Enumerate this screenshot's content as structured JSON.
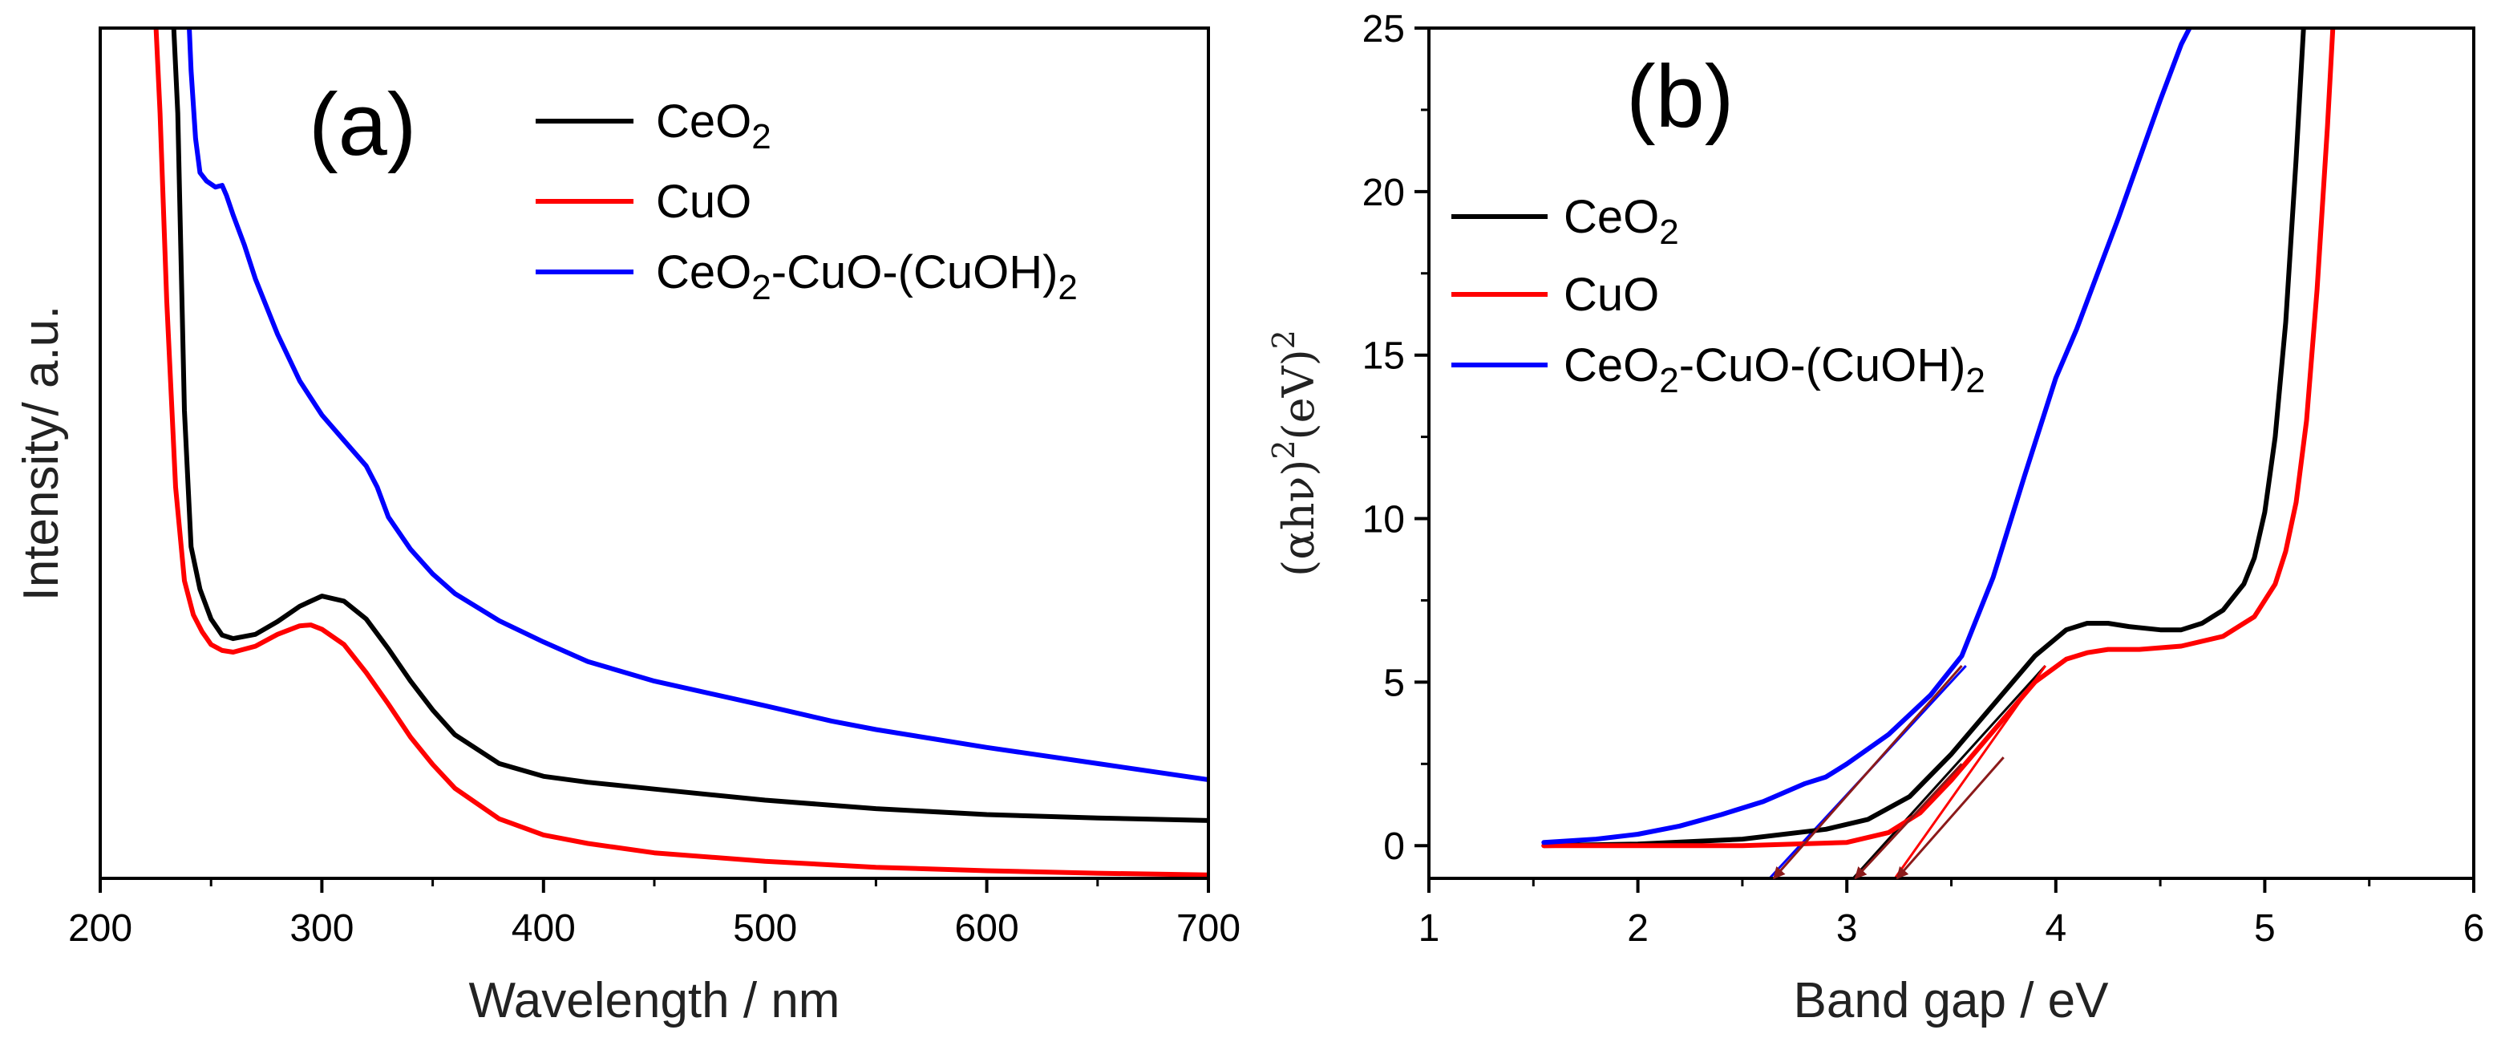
{
  "chart_data": [
    {
      "type": "line",
      "panel_label": "(a)",
      "xlabel": "Wavelength / nm",
      "ylabel": "Intensity/ a.u.",
      "xlim": [
        200,
        700
      ],
      "ylim": [
        0,
        100
      ],
      "xticks": [
        "200",
        "300",
        "400",
        "500",
        "600",
        "700"
      ],
      "legend": "top-right",
      "series": [
        {
          "name": "CeO2",
          "label_main": "CeO",
          "label_sub": "2",
          "label_rest": "",
          "color": "#000000",
          "x": [
            233,
            235,
            238,
            241,
            245,
            250,
            255,
            260,
            270,
            280,
            290,
            300,
            310,
            320,
            330,
            340,
            350,
            360,
            380,
            400,
            420,
            450,
            500,
            550,
            600,
            650,
            700
          ],
          "y": [
            101,
            90,
            55,
            39,
            34,
            30.5,
            28.6,
            28.2,
            28.7,
            30.2,
            32,
            33.2,
            32.6,
            30.5,
            27,
            23.2,
            19.8,
            16.9,
            13.5,
            12,
            11.3,
            10.5,
            9.2,
            8.2,
            7.5,
            7.1,
            6.8
          ]
        },
        {
          "name": "CuO",
          "label_main": "CuO",
          "label_sub": "",
          "label_rest": "",
          "color": "#ff0000",
          "x": [
            225,
            227,
            230,
            234,
            238,
            242,
            246,
            250,
            255,
            260,
            270,
            280,
            290,
            295,
            300,
            310,
            320,
            330,
            340,
            350,
            360,
            380,
            400,
            420,
            450,
            500,
            550,
            600,
            650,
            700
          ],
          "y": [
            101,
            90,
            68,
            46,
            35,
            31,
            29,
            27.5,
            26.8,
            26.6,
            27.3,
            28.7,
            29.7,
            29.8,
            29.3,
            27.5,
            24.2,
            20.5,
            16.6,
            13.4,
            10.6,
            7,
            5.1,
            4.1,
            3,
            2,
            1.3,
            0.9,
            0.6,
            0.4
          ]
        },
        {
          "name": "CeO2-CuO-(CuOH)2",
          "label_main": "CeO",
          "label_sub": "2",
          "label_rest": "-CuO-(CuOH)",
          "label_sub2": "2",
          "color": "#0000ff",
          "x": [
            240,
            241,
            243,
            245,
            248,
            252,
            255,
            257,
            260,
            265,
            270,
            280,
            290,
            300,
            310,
            320,
            325,
            330,
            340,
            350,
            360,
            380,
            400,
            420,
            450,
            500,
            530,
            550,
            600,
            650,
            700
          ],
          "y": [
            101,
            95,
            87,
            83,
            82,
            81.3,
            81.5,
            80.3,
            78,
            74.5,
            70.5,
            64,
            58.5,
            54.5,
            51.5,
            48.5,
            46,
            42.5,
            38.7,
            35.8,
            33.5,
            30.3,
            27.8,
            25.5,
            23.2,
            20.3,
            18.5,
            17.5,
            15.4,
            13.5,
            11.6
          ]
        }
      ]
    },
    {
      "type": "line",
      "panel_label": "(b)",
      "xlabel": "Band gap / eV",
      "ylabel": "(αhν)²(eV)²",
      "ylabel_base": "(αhν)",
      "ylabel_sup": "2",
      "ylabel_tail": "(eV)",
      "ylabel_sup2": "2",
      "xlim": [
        1,
        6
      ],
      "ylim": [
        -1,
        25
      ],
      "xticks": [
        "1",
        "2",
        "3",
        "4",
        "5",
        "6"
      ],
      "yticks": [
        "0",
        "5",
        "10",
        "15",
        "20",
        "25"
      ],
      "legend": "left",
      "series": [
        {
          "name": "CeO2",
          "label_main": "CeO",
          "label_sub": "2",
          "label_rest": "",
          "color": "#000000",
          "x": [
            1.55,
            2,
            2.5,
            2.9,
            3.1,
            3.3,
            3.5,
            3.7,
            3.9,
            4.05,
            4.15,
            4.25,
            4.35,
            4.5,
            4.6,
            4.7,
            4.8,
            4.9,
            4.95,
            5.0,
            5.05,
            5.1,
            5.15,
            5.19
          ],
          "y": [
            0,
            0.05,
            0.2,
            0.5,
            0.8,
            1.5,
            2.8,
            4.3,
            5.8,
            6.6,
            6.8,
            6.8,
            6.7,
            6.6,
            6.6,
            6.8,
            7.2,
            8.0,
            8.8,
            10.2,
            12.5,
            16,
            21,
            25.5
          ]
        },
        {
          "name": "CuO",
          "label_main": "CuO",
          "label_sub": "",
          "label_rest": "",
          "color": "#ff0000",
          "x": [
            1.55,
            2,
            2.5,
            3.0,
            3.2,
            3.35,
            3.5,
            3.7,
            3.9,
            4.05,
            4.15,
            4.25,
            4.4,
            4.6,
            4.8,
            4.95,
            5.05,
            5.1,
            5.15,
            5.2,
            5.25,
            5.3,
            5.33
          ],
          "y": [
            0,
            0,
            0,
            0.1,
            0.4,
            1.0,
            2.0,
            3.5,
            5.0,
            5.7,
            5.9,
            6.0,
            6.0,
            6.1,
            6.4,
            7.0,
            8.0,
            9.0,
            10.5,
            13,
            17,
            22,
            25.5
          ]
        },
        {
          "name": "CeO2-CuO-(CuOH)2",
          "label_main": "CeO",
          "label_sub": "2",
          "label_rest": "-CuO-(CuOH)",
          "label_sub2": "2",
          "color": "#0000ff",
          "x": [
            1.55,
            1.8,
            2.0,
            2.2,
            2.4,
            2.6,
            2.8,
            2.9,
            3.0,
            3.2,
            3.4,
            3.55,
            3.7,
            3.85,
            4.0,
            4.1,
            4.2,
            4.3,
            4.4,
            4.5,
            4.6,
            4.68
          ],
          "y": [
            0.1,
            0.2,
            0.35,
            0.6,
            0.95,
            1.35,
            1.9,
            2.1,
            2.5,
            3.4,
            4.6,
            5.8,
            8.2,
            11.3,
            14.3,
            15.8,
            17.5,
            19.2,
            21.0,
            22.8,
            24.5,
            25.5
          ]
        }
      ],
      "tangent_lines": [
        {
          "color": "#000000",
          "x": [
            3.95,
            3.03
          ],
          "y": [
            5.5,
            -1.0
          ]
        },
        {
          "color": "#ff0000",
          "x": [
            3.95,
            3.23
          ],
          "y": [
            5.5,
            -1.0
          ]
        },
        {
          "color": "#0000ff",
          "x": [
            3.57,
            2.63
          ],
          "y": [
            5.5,
            -1.0
          ]
        }
      ],
      "arrows": [
        {
          "color": "#8b1a1a",
          "from": [
            3.55,
            5.5
          ],
          "to": [
            2.65,
            -1.0
          ]
        },
        {
          "color": "#8b1a1a",
          "from": [
            3.55,
            2.5
          ],
          "to": [
            3.04,
            -1.0
          ]
        },
        {
          "color": "#8b1a1a",
          "from": [
            3.75,
            2.7
          ],
          "to": [
            3.24,
            -1.0
          ]
        }
      ]
    }
  ]
}
